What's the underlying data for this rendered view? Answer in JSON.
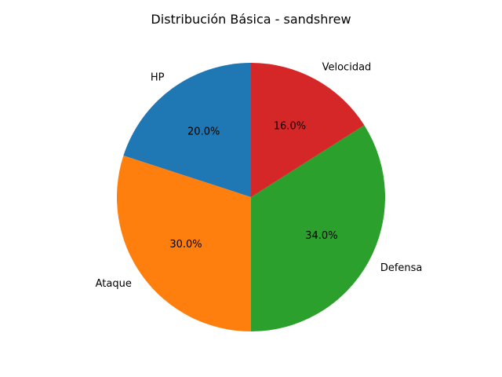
{
  "chart_data": {
    "type": "pie",
    "title": "Distribución Básica - sandshrew",
    "start_angle_deg": 90,
    "direction": "counterclockwise",
    "categories": [
      "HP",
      "Ataque",
      "Defensa",
      "Velocidad"
    ],
    "values": [
      20.0,
      30.0,
      34.0,
      16.0
    ],
    "value_labels": [
      "20.0%",
      "30.0%",
      "34.0%",
      "16.0%"
    ],
    "colors": [
      "#1f77b4",
      "#ff7f0e",
      "#2ca02c",
      "#d62728"
    ]
  }
}
